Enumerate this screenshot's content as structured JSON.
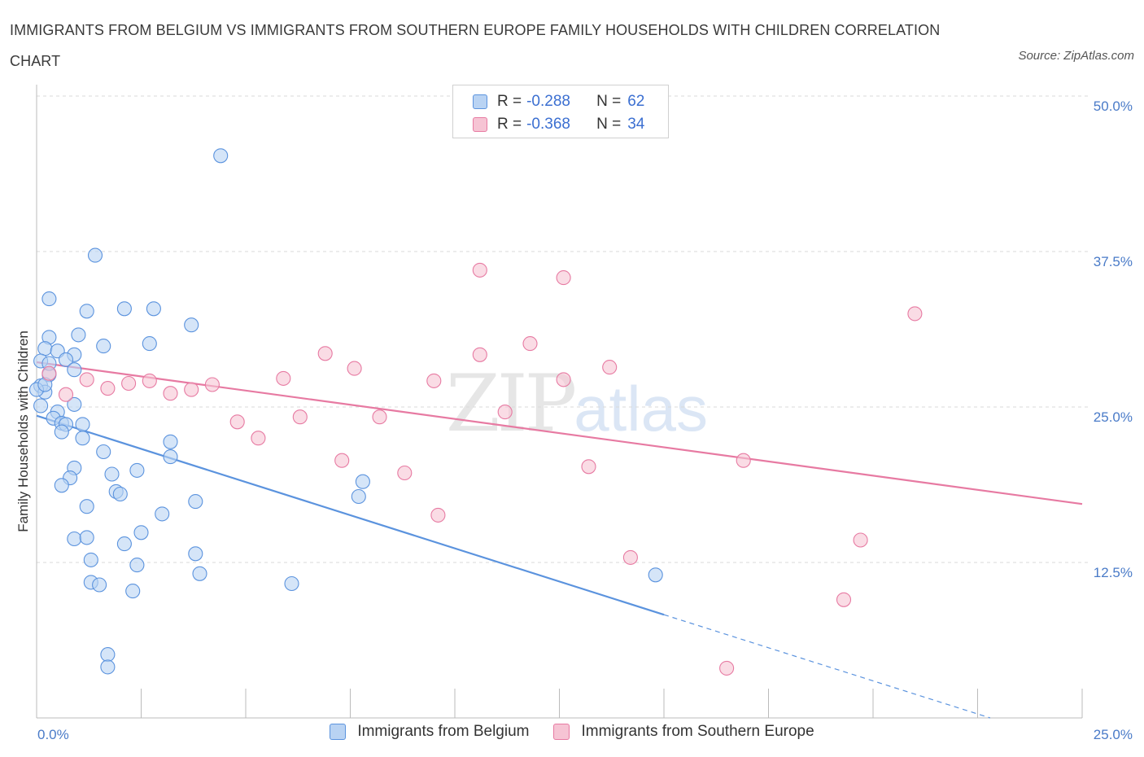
{
  "title": "IMMIGRANTS FROM BELGIUM VS IMMIGRANTS FROM SOUTHERN EUROPE FAMILY HOUSEHOLDS WITH CHILDREN CORRELATION CHART",
  "source": "Source: ZipAtlas.com",
  "watermark": {
    "zip": "ZIP",
    "atlas": "atlas"
  },
  "legend_top": [
    {
      "r_label": "R =",
      "r_value": "-0.288",
      "n_label": "N =",
      "n_value": "62"
    },
    {
      "r_label": "R =",
      "r_value": "-0.368",
      "n_label": "N =",
      "n_value": "34"
    }
  ],
  "chart_data": {
    "type": "scatter",
    "title": "IMMIGRANTS FROM BELGIUM VS IMMIGRANTS FROM SOUTHERN EUROPE FAMILY HOUSEHOLDS WITH CHILDREN CORRELATION CHART",
    "xlabel": "",
    "ylabel": "Family Households with Children",
    "xlim": [
      0,
      25
    ],
    "ylim": [
      0,
      50
    ],
    "x_tick_labels": {
      "left": "0.0%",
      "right": "25.0%"
    },
    "y_ticks": [
      {
        "value": 50,
        "label": "50.0%"
      },
      {
        "value": 37.5,
        "label": "37.5%"
      },
      {
        "value": 25,
        "label": "25.0%"
      },
      {
        "value": 12.5,
        "label": "12.5%"
      }
    ],
    "grid": true,
    "series": [
      {
        "name": "Immigrants from Belgium",
        "color": "#5b93de",
        "fill": "#b9d3f3",
        "r": -0.288,
        "n": 62,
        "points": [
          [
            4.4,
            45.2
          ],
          [
            1.4,
            37.2
          ],
          [
            0.3,
            33.7
          ],
          [
            1.2,
            32.7
          ],
          [
            2.1,
            32.9
          ],
          [
            2.8,
            32.9
          ],
          [
            3.7,
            31.6
          ],
          [
            0.3,
            30.6
          ],
          [
            1.0,
            30.8
          ],
          [
            0.2,
            29.7
          ],
          [
            0.5,
            29.5
          ],
          [
            0.9,
            29.2
          ],
          [
            1.6,
            29.9
          ],
          [
            2.7,
            30.1
          ],
          [
            0.7,
            28.8
          ],
          [
            0.9,
            28.0
          ],
          [
            0.1,
            28.7
          ],
          [
            0.3,
            27.6
          ],
          [
            0.1,
            26.7
          ],
          [
            0.2,
            26.2
          ],
          [
            0.0,
            26.4
          ],
          [
            0.1,
            25.1
          ],
          [
            0.9,
            25.2
          ],
          [
            0.5,
            24.6
          ],
          [
            0.4,
            24.1
          ],
          [
            0.6,
            23.7
          ],
          [
            0.7,
            23.6
          ],
          [
            1.1,
            23.6
          ],
          [
            0.6,
            23.0
          ],
          [
            1.1,
            22.5
          ],
          [
            3.2,
            22.2
          ],
          [
            1.6,
            21.4
          ],
          [
            3.2,
            21.0
          ],
          [
            0.9,
            20.1
          ],
          [
            0.8,
            19.3
          ],
          [
            1.8,
            19.6
          ],
          [
            2.4,
            19.9
          ],
          [
            0.6,
            18.7
          ],
          [
            1.9,
            18.2
          ],
          [
            2.0,
            18.0
          ],
          [
            7.7,
            17.8
          ],
          [
            3.8,
            17.4
          ],
          [
            7.8,
            19.0
          ],
          [
            1.2,
            17.0
          ],
          [
            3.0,
            16.4
          ],
          [
            2.5,
            14.9
          ],
          [
            0.9,
            14.4
          ],
          [
            1.2,
            14.5
          ],
          [
            2.1,
            14.0
          ],
          [
            3.8,
            13.2
          ],
          [
            1.3,
            12.7
          ],
          [
            2.4,
            12.3
          ],
          [
            3.9,
            11.6
          ],
          [
            1.3,
            10.9
          ],
          [
            1.5,
            10.7
          ],
          [
            6.1,
            10.8
          ],
          [
            14.8,
            11.5
          ],
          [
            2.3,
            10.2
          ],
          [
            1.7,
            5.1
          ],
          [
            1.7,
            4.1
          ],
          [
            0.3,
            28.5
          ],
          [
            0.2,
            26.8
          ]
        ],
        "trend": {
          "x0": 0.0,
          "y0": 24.3,
          "x1": 15.0,
          "y1": 8.3,
          "dashed_to": [
            22.8,
            0.0
          ]
        }
      },
      {
        "name": "Immigrants from Southern Europe",
        "color": "#e77aa2",
        "fill": "#f6c4d4",
        "r": -0.368,
        "n": 34,
        "points": [
          [
            0.3,
            27.7
          ],
          [
            0.7,
            26.0
          ],
          [
            1.2,
            27.2
          ],
          [
            1.7,
            26.5
          ],
          [
            2.2,
            26.9
          ],
          [
            2.7,
            27.1
          ],
          [
            3.2,
            26.1
          ],
          [
            3.7,
            26.4
          ],
          [
            4.2,
            26.8
          ],
          [
            4.8,
            23.8
          ],
          [
            5.3,
            22.5
          ],
          [
            5.9,
            27.3
          ],
          [
            6.3,
            24.2
          ],
          [
            6.9,
            29.3
          ],
          [
            7.6,
            28.1
          ],
          [
            7.3,
            20.7
          ],
          [
            8.2,
            24.2
          ],
          [
            8.8,
            19.7
          ],
          [
            9.5,
            27.1
          ],
          [
            9.6,
            16.3
          ],
          [
            10.6,
            36.0
          ],
          [
            10.6,
            29.2
          ],
          [
            11.2,
            24.6
          ],
          [
            11.8,
            30.1
          ],
          [
            12.6,
            35.4
          ],
          [
            12.6,
            27.2
          ],
          [
            13.2,
            20.2
          ],
          [
            13.7,
            28.2
          ],
          [
            14.2,
            12.9
          ],
          [
            16.5,
            4.0
          ],
          [
            16.9,
            20.7
          ],
          [
            19.3,
            9.5
          ],
          [
            19.7,
            14.3
          ],
          [
            21.0,
            32.5
          ]
        ],
        "trend": {
          "x0": 0.0,
          "y0": 28.6,
          "x1": 25.0,
          "y1": 17.2
        }
      }
    ],
    "legend": [
      "Immigrants from Belgium",
      "Immigrants from Southern Europe"
    ]
  }
}
